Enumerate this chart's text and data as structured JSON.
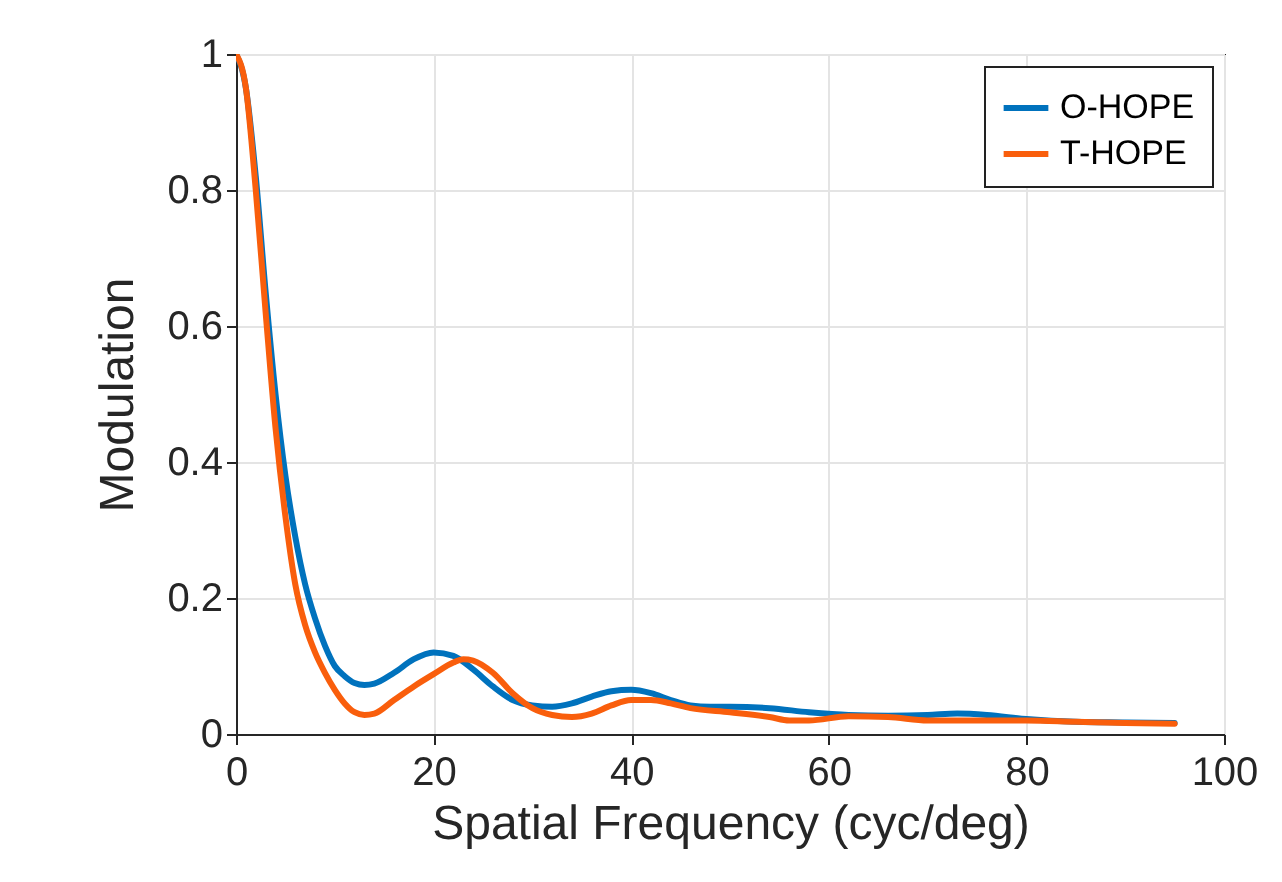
{
  "chart_data": {
    "type": "line",
    "xlabel": "Spatial Frequency (cyc/deg)",
    "ylabel": "Modulation",
    "xlim": [
      0,
      100
    ],
    "xticks": [
      0,
      20,
      40,
      60,
      80,
      100
    ],
    "ylim": [
      0,
      1
    ],
    "yticks": [
      0,
      0.2,
      0.4,
      0.6,
      0.8,
      1
    ],
    "grid": true,
    "legend": "top right",
    "series": [
      {
        "name": "O-HOPE",
        "color": "#0072bd",
        "x": [
          0,
          1,
          2,
          3,
          4,
          5,
          6,
          7,
          8,
          9,
          10,
          11,
          12,
          13,
          14,
          16,
          18,
          20,
          22,
          24,
          26,
          28,
          30,
          32,
          34,
          36,
          38,
          40,
          42,
          44,
          46,
          48,
          50,
          54,
          58,
          62,
          66,
          70,
          73,
          76,
          80,
          85,
          90,
          95
        ],
        "values": [
          1,
          0.95,
          0.82,
          0.65,
          0.5,
          0.38,
          0.29,
          0.22,
          0.17,
          0.13,
          0.1,
          0.085,
          0.075,
          0.072,
          0.074,
          0.09,
          0.11,
          0.12,
          0.115,
          0.095,
          0.07,
          0.05,
          0.042,
          0.04,
          0.045,
          0.055,
          0.063,
          0.065,
          0.06,
          0.05,
          0.042,
          0.04,
          0.04,
          0.038,
          0.032,
          0.028,
          0.027,
          0.028,
          0.03,
          0.028,
          0.022,
          0.018,
          0.017,
          0.016
        ]
      },
      {
        "name": "T-HOPE",
        "color": "#f95e0c",
        "x": [
          0,
          1,
          2,
          3,
          4,
          5,
          6,
          7,
          8,
          9,
          10,
          11,
          12,
          13,
          14,
          16,
          18,
          20,
          22,
          23,
          24,
          26,
          28,
          30,
          32,
          34,
          36,
          38,
          40,
          42,
          44,
          46,
          50,
          54,
          56,
          58,
          62,
          66,
          70,
          75,
          80,
          85,
          90,
          95
        ],
        "values": [
          1,
          0.95,
          0.8,
          0.62,
          0.45,
          0.32,
          0.22,
          0.16,
          0.12,
          0.09,
          0.065,
          0.045,
          0.032,
          0.028,
          0.03,
          0.05,
          0.07,
          0.088,
          0.105,
          0.11,
          0.108,
          0.09,
          0.06,
          0.038,
          0.028,
          0.025,
          0.03,
          0.042,
          0.05,
          0.05,
          0.045,
          0.038,
          0.032,
          0.025,
          0.02,
          0.02,
          0.026,
          0.025,
          0.02,
          0.02,
          0.02,
          0.018,
          0.016,
          0.015
        ]
      }
    ]
  }
}
